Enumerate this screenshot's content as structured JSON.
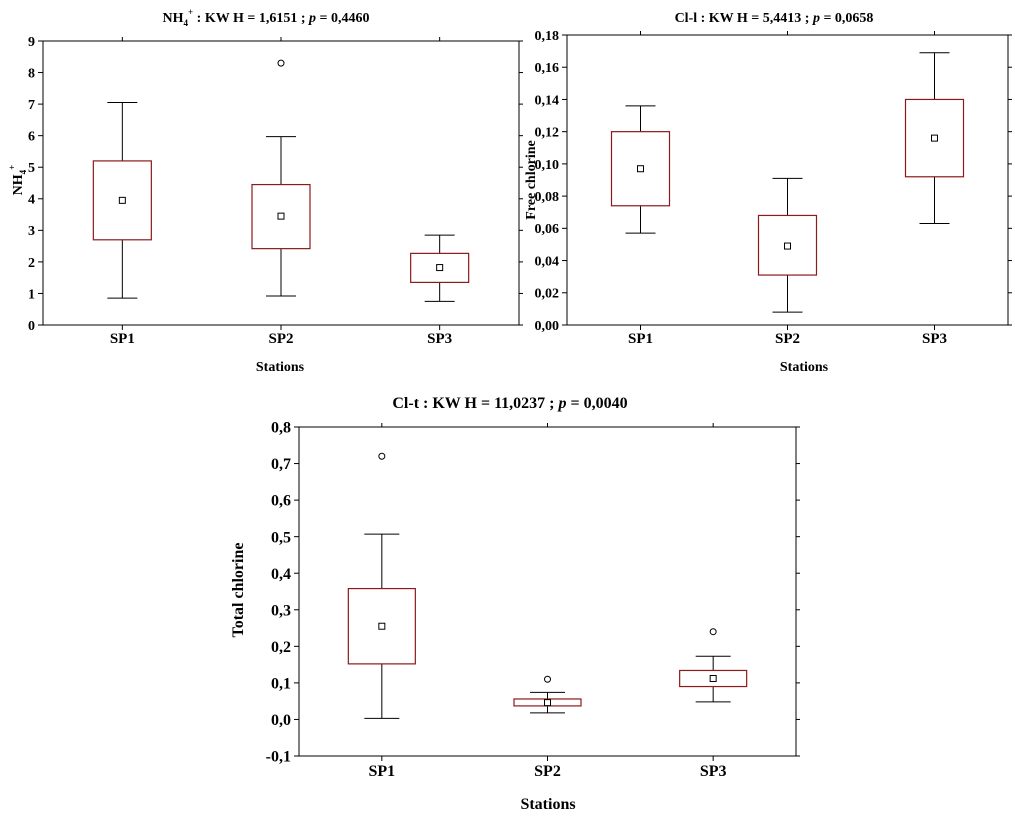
{
  "colors": {
    "box": "#8B1A1A",
    "whisker": "#000000",
    "frame": "#000000"
  },
  "chart_data": [
    {
      "type": "box",
      "title_species": "NH",
      "title_sub": "4",
      "title_sup": "+",
      "title_stat": " : KW H = 1,6151 ; ",
      "title_p": "p",
      "title_tail": " = 0,4460",
      "xlabel": "Stations",
      "ylabel_main": "NH",
      "ylabel_sub": "4",
      "ylabel_sup": "+",
      "ylim": [
        0,
        9
      ],
      "yticks": [
        0,
        1,
        2,
        3,
        4,
        5,
        6,
        7,
        8,
        9
      ],
      "ytick_labels": [
        "0",
        "1",
        "2",
        "3",
        "4",
        "5",
        "6",
        "7",
        "8",
        "9"
      ],
      "categories": [
        "SP1",
        "SP2",
        "SP3"
      ],
      "boxes": [
        {
          "whisker_low": 0.85,
          "q1": 2.7,
          "median": 3.95,
          "q3": 5.2,
          "whisker_high": 7.05,
          "outliers": []
        },
        {
          "whisker_low": 0.92,
          "q1": 2.42,
          "median": 3.45,
          "q3": 4.45,
          "whisker_high": 5.97,
          "outliers": [
            8.3
          ]
        },
        {
          "whisker_low": 0.75,
          "q1": 1.35,
          "median": 1.82,
          "q3": 2.27,
          "whisker_high": 2.85,
          "outliers": []
        }
      ]
    },
    {
      "type": "box",
      "title": "Cl-l : KW H = 5,4413 ; ",
      "title_p": "p",
      "title_tail": " = 0,0658",
      "xlabel": "Stations",
      "ylabel": "Free chlorine",
      "ylim": [
        0,
        0.18
      ],
      "yticks": [
        0,
        0.02,
        0.04,
        0.06,
        0.08,
        0.1,
        0.12,
        0.14,
        0.16,
        0.18
      ],
      "ytick_labels": [
        "0,00",
        "0,02",
        "0,04",
        "0,06",
        "0,08",
        "0,10",
        "0,12",
        "0,14",
        "0,16",
        "0,18"
      ],
      "categories": [
        "SP1",
        "SP2",
        "SP3"
      ],
      "boxes": [
        {
          "whisker_low": 0.057,
          "q1": 0.074,
          "median": 0.097,
          "q3": 0.12,
          "whisker_high": 0.136,
          "outliers": []
        },
        {
          "whisker_low": 0.008,
          "q1": 0.031,
          "median": 0.049,
          "q3": 0.068,
          "whisker_high": 0.091,
          "outliers": []
        },
        {
          "whisker_low": 0.063,
          "q1": 0.092,
          "median": 0.116,
          "q3": 0.14,
          "whisker_high": 0.169,
          "outliers": []
        }
      ]
    },
    {
      "type": "box",
      "title": "Cl-t : KW H = 11,0237 ; ",
      "title_p": "p",
      "title_tail": " = 0,0040",
      "xlabel": "Stations",
      "ylabel": "Total chlorine",
      "ylim": [
        -0.1,
        0.8
      ],
      "yticks": [
        -0.1,
        0,
        0.1,
        0.2,
        0.3,
        0.4,
        0.5,
        0.6,
        0.7,
        0.8
      ],
      "ytick_labels": [
        "-0,1",
        "0,0",
        "0,1",
        "0,2",
        "0,3",
        "0,4",
        "0,5",
        "0,6",
        "0,7",
        "0,8"
      ],
      "categories": [
        "SP1",
        "SP2",
        "SP3"
      ],
      "boxes": [
        {
          "whisker_low": 0.003,
          "q1": 0.152,
          "median": 0.255,
          "q3": 0.358,
          "whisker_high": 0.507,
          "outliers": [
            0.72
          ]
        },
        {
          "whisker_low": 0.018,
          "q1": 0.037,
          "median": 0.046,
          "q3": 0.056,
          "whisker_high": 0.074,
          "outliers": [
            0.11
          ]
        },
        {
          "whisker_low": 0.048,
          "q1": 0.09,
          "median": 0.112,
          "q3": 0.134,
          "whisker_high": 0.173,
          "outliers": [
            0.24
          ]
        }
      ]
    }
  ]
}
